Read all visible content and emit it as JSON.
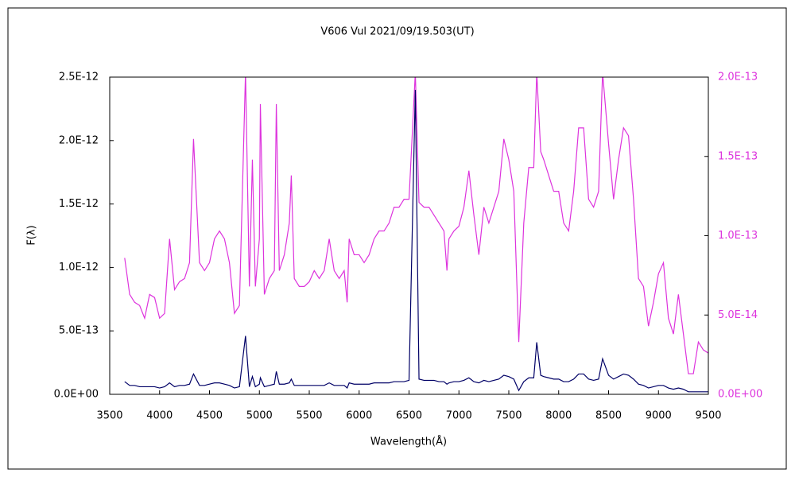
{
  "chart_data": {
    "type": "line",
    "title": "V606 Vul   2021/09/19.503(UT)",
    "xlabel": "Wavelength(Å)",
    "ylabel": "F(λ)",
    "x": [
      3650,
      3700,
      3750,
      3800,
      3850,
      3900,
      3950,
      4000,
      4050,
      4100,
      4150,
      4200,
      4250,
      4300,
      4340,
      4400,
      4450,
      4500,
      4550,
      4600,
      4650,
      4700,
      4750,
      4800,
      4861,
      4900,
      4930,
      4960,
      5000,
      5010,
      5050,
      5100,
      5150,
      5170,
      5200,
      5250,
      5300,
      5320,
      5350,
      5400,
      5450,
      5500,
      5550,
      5600,
      5650,
      5700,
      5750,
      5800,
      5850,
      5880,
      5900,
      5950,
      6000,
      6050,
      6100,
      6150,
      6200,
      6250,
      6300,
      6350,
      6400,
      6450,
      6500,
      6563,
      6600,
      6650,
      6700,
      6750,
      6800,
      6850,
      6880,
      6900,
      6950,
      7000,
      7050,
      7100,
      7150,
      7200,
      7250,
      7300,
      7350,
      7400,
      7450,
      7500,
      7550,
      7600,
      7650,
      7700,
      7750,
      7780,
      7820,
      7850,
      7900,
      7950,
      8000,
      8050,
      8100,
      8150,
      8200,
      8250,
      8300,
      8350,
      8400,
      8440,
      8500,
      8550,
      8600,
      8650,
      8700,
      8750,
      8800,
      8850,
      8900,
      8950,
      9000,
      9050,
      9100,
      9150,
      9200,
      9250,
      9300,
      9350,
      9400,
      9450,
      9500
    ],
    "series": [
      {
        "color": "#000066",
        "axis": "y",
        "values": [
          1e-13,
          7e-14,
          7e-14,
          6e-14,
          6e-14,
          6e-14,
          6e-14,
          5e-14,
          6e-14,
          9e-14,
          6e-14,
          7e-14,
          7e-14,
          8e-14,
          1.6e-13,
          7e-14,
          7e-14,
          8e-14,
          9e-14,
          9e-14,
          8e-14,
          7e-14,
          5e-14,
          6e-14,
          4.6e-13,
          6e-14,
          1.4e-13,
          6e-14,
          8e-14,
          1.3e-13,
          6e-14,
          7e-14,
          8e-14,
          1.8e-13,
          8e-14,
          8e-14,
          9e-14,
          1.2e-13,
          7e-14,
          7e-14,
          7e-14,
          7e-14,
          7e-14,
          7e-14,
          7e-14,
          9e-14,
          7e-14,
          7e-14,
          7e-14,
          5e-14,
          9e-14,
          8e-14,
          8e-14,
          8e-14,
          8e-14,
          9e-14,
          9e-14,
          9e-14,
          9e-14,
          1e-13,
          1e-13,
          1e-13,
          1.1e-13,
          2.4e-12,
          1.2e-13,
          1.1e-13,
          1.1e-13,
          1.1e-13,
          1e-13,
          1e-13,
          8e-14,
          9e-14,
          1e-13,
          1e-13,
          1.1e-13,
          1.3e-13,
          1e-13,
          9e-14,
          1.1e-13,
          1e-13,
          1.1e-13,
          1.2e-13,
          1.5e-13,
          1.4e-13,
          1.2e-13,
          3e-14,
          1e-13,
          1.3e-13,
          1.3e-13,
          4.1e-13,
          1.5e-13,
          1.4e-13,
          1.3e-13,
          1.2e-13,
          1.2e-13,
          1e-13,
          1e-13,
          1.2e-13,
          1.6e-13,
          1.6e-13,
          1.2e-13,
          1.1e-13,
          1.2e-13,
          2.8e-13,
          1.5e-13,
          1.2e-13,
          1.4e-13,
          1.6e-13,
          1.5e-13,
          1.2e-13,
          8e-14,
          7e-14,
          5e-14,
          6e-14,
          7e-14,
          7e-14,
          5e-14,
          4e-14,
          5e-14,
          4e-14,
          2e-14,
          2e-14,
          2e-14,
          2e-14,
          2e-14
        ]
      },
      {
        "color": "#dd33dd",
        "axis": "y2",
        "values": [
          8.6e-14,
          6.3e-14,
          5.8e-14,
          5.6e-14,
          4.8e-14,
          6.3e-14,
          6.1e-14,
          4.8e-14,
          5.1e-14,
          9.8e-14,
          6.6e-14,
          7.1e-14,
          7.3e-14,
          8.3e-14,
          1.61e-13,
          8.3e-14,
          7.8e-14,
          8.3e-14,
          9.8e-14,
          1.03e-13,
          9.8e-14,
          8.3e-14,
          5.1e-14,
          5.6e-14,
          2.03e-13,
          6.8e-14,
          1.48e-13,
          6.8e-14,
          9.8e-14,
          1.83e-13,
          6.3e-14,
          7.3e-14,
          7.8e-14,
          1.83e-13,
          7.8e-14,
          8.8e-14,
          1.08e-13,
          1.38e-13,
          7.3e-14,
          6.8e-14,
          6.8e-14,
          7.1e-14,
          7.8e-14,
          7.3e-14,
          7.8e-14,
          9.8e-14,
          7.8e-14,
          7.3e-14,
          7.8e-14,
          5.8e-14,
          9.8e-14,
          8.8e-14,
          8.8e-14,
          8.3e-14,
          8.8e-14,
          9.8e-14,
          1.03e-13,
          1.03e-13,
          1.08e-13,
          1.18e-13,
          1.18e-13,
          1.23e-13,
          1.23e-13,
          2.03e-13,
          1.21e-13,
          1.18e-13,
          1.18e-13,
          1.13e-13,
          1.08e-13,
          1.03e-13,
          7.8e-14,
          9.8e-14,
          1.03e-13,
          1.06e-13,
          1.18e-13,
          1.41e-13,
          1.13e-13,
          8.8e-14,
          1.18e-13,
          1.08e-13,
          1.18e-13,
          1.28e-13,
          1.61e-13,
          1.48e-13,
          1.28e-13,
          3.3e-14,
          1.08e-13,
          1.43e-13,
          1.43e-13,
          2.03e-13,
          1.53e-13,
          1.48e-13,
          1.38e-13,
          1.28e-13,
          1.28e-13,
          1.08e-13,
          1.03e-13,
          1.28e-13,
          1.68e-13,
          1.68e-13,
          1.23e-13,
          1.18e-13,
          1.28e-13,
          2.03e-13,
          1.58e-13,
          1.23e-13,
          1.48e-13,
          1.68e-13,
          1.63e-13,
          1.23e-13,
          7.3e-14,
          6.8e-14,
          4.3e-14,
          5.8e-14,
          7.6e-14,
          8.3e-14,
          4.8e-14,
          3.8e-14,
          6.3e-14,
          3.8e-14,
          1.3e-14,
          1.3e-14,
          3.3e-14,
          2.8e-14,
          2.6e-14
        ]
      }
    ],
    "xlim": [
      3500,
      9500
    ],
    "xticks": [
      3500,
      4000,
      4500,
      5000,
      5500,
      6000,
      6500,
      7000,
      7500,
      8000,
      8500,
      9000,
      9500
    ],
    "ylim": [
      0,
      2.5e-12
    ],
    "yticks": [
      {
        "value": 0,
        "label": "0.0E+00"
      },
      {
        "value": 5e-13,
        "label": "5.0E-13"
      },
      {
        "value": 1e-12,
        "label": "1.0E-12"
      },
      {
        "value": 1.5e-12,
        "label": "1.5E-12"
      },
      {
        "value": 2e-12,
        "label": "2.0E-12"
      },
      {
        "value": 2.5e-12,
        "label": "2.5E-12"
      }
    ],
    "y2lim": [
      0,
      2e-13
    ],
    "y2ticks": [
      {
        "value": 0,
        "label": "0.0E+00"
      },
      {
        "value": 5e-14,
        "label": "5.0E-14"
      },
      {
        "value": 1e-13,
        "label": "1.0E-13"
      },
      {
        "value": 1.5e-13,
        "label": "1.5E-13"
      },
      {
        "value": 2e-13,
        "label": "2.0E-13"
      }
    ],
    "y2color": "#dd33dd",
    "grid": false
  }
}
